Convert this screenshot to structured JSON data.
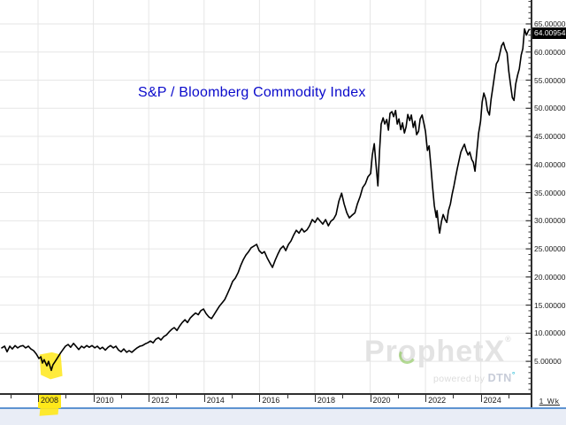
{
  "chart_data": {
    "type": "line",
    "title": "S&P / Bloomberg Commodity Index",
    "periodicity_label": "1 Wk",
    "last_price_label": "64.00954",
    "last_price_value": 64.00954,
    "grid": true,
    "legend": "none",
    "x_axis": {
      "range": [
        2006.625,
        2025.8
      ],
      "tick_years": [
        2008,
        2010,
        2012,
        2014,
        2016,
        2018,
        2020,
        2022,
        2024
      ],
      "tick_labels": [
        "2008",
        "2010",
        "2012",
        "2014",
        "2016",
        "2018",
        "2020",
        "2022",
        "2024"
      ]
    },
    "y_axis": {
      "side": "right",
      "range": [
        -0.65,
        69.25
      ],
      "tick_values": [
        5,
        10,
        15,
        20,
        25,
        30,
        35,
        40,
        45,
        50,
        55,
        60,
        65
      ],
      "tick_labels": [
        "5.00000",
        "10.00000",
        "15.00000",
        "20.00000",
        "25.00000",
        "30.00000",
        "35.00000",
        "40.00000",
        "45.00000",
        "50.00000",
        "55.00000",
        "60.00000",
        "65.00000"
      ],
      "minor_tick_step": 1
    },
    "series": [
      {
        "name": "S&P / Bloomberg Commodity Index",
        "points": [
          [
            2006.69,
            7.4
          ],
          [
            2006.79,
            7.7
          ],
          [
            2006.88,
            6.7
          ],
          [
            2006.98,
            7.7
          ],
          [
            2007.07,
            7.2
          ],
          [
            2007.17,
            7.8
          ],
          [
            2007.26,
            7.4
          ],
          [
            2007.36,
            7.7
          ],
          [
            2007.46,
            7.8
          ],
          [
            2007.55,
            7.4
          ],
          [
            2007.65,
            7.7
          ],
          [
            2007.74,
            7.2
          ],
          [
            2007.84,
            6.9
          ],
          [
            2007.94,
            6.3
          ],
          [
            2008.03,
            5.5
          ],
          [
            2008.1,
            5.8
          ],
          [
            2008.16,
            4.7
          ],
          [
            2008.22,
            5.3
          ],
          [
            2008.32,
            4.2
          ],
          [
            2008.38,
            5.0
          ],
          [
            2008.48,
            3.4
          ],
          [
            2008.54,
            4.4
          ],
          [
            2008.61,
            4.9
          ],
          [
            2008.7,
            5.6
          ],
          [
            2008.8,
            6.4
          ],
          [
            2008.9,
            7.1
          ],
          [
            2008.99,
            7.7
          ],
          [
            2009.09,
            8.0
          ],
          [
            2009.18,
            7.5
          ],
          [
            2009.28,
            8.2
          ],
          [
            2009.37,
            7.7
          ],
          [
            2009.47,
            7.1
          ],
          [
            2009.57,
            7.7
          ],
          [
            2009.66,
            7.4
          ],
          [
            2009.76,
            7.8
          ],
          [
            2009.85,
            7.5
          ],
          [
            2009.95,
            7.8
          ],
          [
            2010.05,
            7.4
          ],
          [
            2010.14,
            7.7
          ],
          [
            2010.24,
            7.2
          ],
          [
            2010.33,
            7.5
          ],
          [
            2010.43,
            7.0
          ],
          [
            2010.53,
            7.5
          ],
          [
            2010.62,
            7.8
          ],
          [
            2010.72,
            7.4
          ],
          [
            2010.81,
            7.7
          ],
          [
            2010.91,
            7.0
          ],
          [
            2011.0,
            6.7
          ],
          [
            2011.1,
            7.2
          ],
          [
            2011.2,
            6.6
          ],
          [
            2011.29,
            6.9
          ],
          [
            2011.39,
            6.6
          ],
          [
            2011.48,
            7.0
          ],
          [
            2011.58,
            7.4
          ],
          [
            2011.68,
            7.7
          ],
          [
            2011.77,
            7.8
          ],
          [
            2011.87,
            8.1
          ],
          [
            2011.96,
            8.3
          ],
          [
            2012.06,
            8.6
          ],
          [
            2012.16,
            8.3
          ],
          [
            2012.25,
            8.9
          ],
          [
            2012.35,
            9.2
          ],
          [
            2012.44,
            8.8
          ],
          [
            2012.54,
            9.4
          ],
          [
            2012.64,
            9.7
          ],
          [
            2012.73,
            10.2
          ],
          [
            2012.83,
            10.7
          ],
          [
            2012.92,
            11.0
          ],
          [
            2013.02,
            10.5
          ],
          [
            2013.12,
            11.3
          ],
          [
            2013.21,
            11.9
          ],
          [
            2013.31,
            12.4
          ],
          [
            2013.4,
            11.9
          ],
          [
            2013.5,
            12.7
          ],
          [
            2013.6,
            13.2
          ],
          [
            2013.69,
            13.6
          ],
          [
            2013.79,
            13.3
          ],
          [
            2013.88,
            14.0
          ],
          [
            2013.98,
            14.3
          ],
          [
            2014.07,
            13.5
          ],
          [
            2014.17,
            12.9
          ],
          [
            2014.27,
            12.6
          ],
          [
            2014.36,
            13.3
          ],
          [
            2014.46,
            14.1
          ],
          [
            2014.55,
            14.8
          ],
          [
            2014.65,
            15.4
          ],
          [
            2014.75,
            16.0
          ],
          [
            2014.84,
            17.0
          ],
          [
            2014.94,
            18.1
          ],
          [
            2015.03,
            19.2
          ],
          [
            2015.13,
            19.8
          ],
          [
            2015.23,
            20.8
          ],
          [
            2015.32,
            22.0
          ],
          [
            2015.42,
            23.1
          ],
          [
            2015.51,
            23.9
          ],
          [
            2015.61,
            24.5
          ],
          [
            2015.7,
            25.2
          ],
          [
            2015.8,
            25.5
          ],
          [
            2015.9,
            25.8
          ],
          [
            2015.99,
            24.7
          ],
          [
            2016.09,
            24.2
          ],
          [
            2016.18,
            24.5
          ],
          [
            2016.28,
            23.4
          ],
          [
            2016.38,
            22.5
          ],
          [
            2016.47,
            21.7
          ],
          [
            2016.57,
            23.0
          ],
          [
            2016.66,
            24.0
          ],
          [
            2016.76,
            25.0
          ],
          [
            2016.86,
            25.5
          ],
          [
            2016.95,
            24.7
          ],
          [
            2017.05,
            25.8
          ],
          [
            2017.14,
            26.4
          ],
          [
            2017.24,
            27.5
          ],
          [
            2017.33,
            28.3
          ],
          [
            2017.43,
            27.8
          ],
          [
            2017.53,
            28.6
          ],
          [
            2017.62,
            28.0
          ],
          [
            2017.72,
            28.4
          ],
          [
            2017.81,
            29.1
          ],
          [
            2017.91,
            30.2
          ],
          [
            2018.01,
            29.7
          ],
          [
            2018.1,
            30.5
          ],
          [
            2018.2,
            29.9
          ],
          [
            2018.29,
            29.4
          ],
          [
            2018.39,
            30.2
          ],
          [
            2018.49,
            29.1
          ],
          [
            2018.58,
            29.9
          ],
          [
            2018.68,
            30.3
          ],
          [
            2018.77,
            31.1
          ],
          [
            2018.87,
            33.5
          ],
          [
            2018.97,
            34.9
          ],
          [
            2019.06,
            33.0
          ],
          [
            2019.16,
            31.4
          ],
          [
            2019.25,
            30.5
          ],
          [
            2019.35,
            31.0
          ],
          [
            2019.45,
            31.4
          ],
          [
            2019.54,
            33.0
          ],
          [
            2019.64,
            34.3
          ],
          [
            2019.73,
            35.9
          ],
          [
            2019.83,
            36.6
          ],
          [
            2019.92,
            37.8
          ],
          [
            2020.02,
            38.4
          ],
          [
            2020.08,
            41.7
          ],
          [
            2020.15,
            43.7
          ],
          [
            2020.21,
            40.1
          ],
          [
            2020.28,
            36.2
          ],
          [
            2020.34,
            42.5
          ],
          [
            2020.4,
            47.2
          ],
          [
            2020.47,
            48.3
          ],
          [
            2020.53,
            47.2
          ],
          [
            2020.6,
            48.0
          ],
          [
            2020.66,
            46.1
          ],
          [
            2020.72,
            49.1
          ],
          [
            2020.79,
            49.4
          ],
          [
            2020.85,
            48.5
          ],
          [
            2020.92,
            49.6
          ],
          [
            2020.98,
            47.2
          ],
          [
            2021.04,
            48.1
          ],
          [
            2021.11,
            46.2
          ],
          [
            2021.17,
            47.4
          ],
          [
            2021.24,
            45.6
          ],
          [
            2021.3,
            46.7
          ],
          [
            2021.36,
            48.9
          ],
          [
            2021.43,
            47.8
          ],
          [
            2021.49,
            48.8
          ],
          [
            2021.56,
            46.6
          ],
          [
            2021.62,
            47.7
          ],
          [
            2021.68,
            45.3
          ],
          [
            2021.75,
            45.9
          ],
          [
            2021.81,
            48.1
          ],
          [
            2021.88,
            48.8
          ],
          [
            2021.94,
            47.4
          ],
          [
            2022.0,
            45.9
          ],
          [
            2022.07,
            42.5
          ],
          [
            2022.13,
            43.3
          ],
          [
            2022.19,
            40.1
          ],
          [
            2022.26,
            35.9
          ],
          [
            2022.32,
            32.7
          ],
          [
            2022.39,
            30.6
          ],
          [
            2022.42,
            31.8
          ],
          [
            2022.48,
            28.8
          ],
          [
            2022.51,
            27.8
          ],
          [
            2022.58,
            29.9
          ],
          [
            2022.64,
            31.1
          ],
          [
            2022.71,
            30.2
          ],
          [
            2022.77,
            29.7
          ],
          [
            2022.83,
            31.8
          ],
          [
            2022.9,
            33.0
          ],
          [
            2022.96,
            34.6
          ],
          [
            2023.03,
            36.2
          ],
          [
            2023.09,
            37.8
          ],
          [
            2023.15,
            39.3
          ],
          [
            2023.22,
            40.9
          ],
          [
            2023.28,
            42.2
          ],
          [
            2023.35,
            43.0
          ],
          [
            2023.41,
            43.6
          ],
          [
            2023.47,
            42.5
          ],
          [
            2023.54,
            41.7
          ],
          [
            2023.6,
            42.2
          ],
          [
            2023.67,
            40.9
          ],
          [
            2023.73,
            40.4
          ],
          [
            2023.79,
            38.8
          ],
          [
            2023.86,
            42.5
          ],
          [
            2023.92,
            45.6
          ],
          [
            2023.99,
            47.7
          ],
          [
            2024.05,
            51.1
          ],
          [
            2024.11,
            52.7
          ],
          [
            2024.18,
            51.6
          ],
          [
            2024.24,
            49.6
          ],
          [
            2024.31,
            48.8
          ],
          [
            2024.37,
            51.6
          ],
          [
            2024.43,
            53.5
          ],
          [
            2024.5,
            55.9
          ],
          [
            2024.56,
            57.9
          ],
          [
            2024.63,
            58.5
          ],
          [
            2024.69,
            59.8
          ],
          [
            2024.75,
            61.1
          ],
          [
            2024.82,
            61.7
          ],
          [
            2024.88,
            60.6
          ],
          [
            2024.95,
            59.8
          ],
          [
            2025.01,
            56.6
          ],
          [
            2025.07,
            54.3
          ],
          [
            2025.14,
            51.9
          ],
          [
            2025.2,
            51.4
          ],
          [
            2025.26,
            54.3
          ],
          [
            2025.33,
            55.9
          ],
          [
            2025.39,
            57.0
          ],
          [
            2025.46,
            59.5
          ],
          [
            2025.52,
            60.6
          ],
          [
            2025.58,
            64.1
          ],
          [
            2025.65,
            63.0
          ],
          [
            2025.71,
            63.7
          ],
          [
            2025.75,
            64.0
          ]
        ]
      }
    ],
    "annotations": [
      {
        "kind": "highlight-polygon",
        "color": "#ffe81a",
        "opacity": 0.85,
        "points": [
          [
            2008.05,
            6.2
          ],
          [
            2008.5,
            6.6
          ],
          [
            2008.82,
            6.2
          ],
          [
            2008.88,
            2.4
          ],
          [
            2008.45,
            1.8
          ],
          [
            2008.1,
            2.6
          ]
        ]
      },
      {
        "kind": "highlight-x-label",
        "year": 2008,
        "color": "#ffe81a"
      }
    ]
  },
  "watermark": {
    "brand_pre": "Pr",
    "brand_o": "o",
    "brand_post": "phetX",
    "reg_mark": "®",
    "tagline": "powered by",
    "vendor": "DTN",
    "degree_mark": "°"
  },
  "colors": {
    "title": "#0a0acb",
    "line": "#000000",
    "grid": "#e6e6e6",
    "axis": "#2f2f2f",
    "highlight": "#ffe81a",
    "price_box_bg": "#000000",
    "price_box_fg": "#ffffff",
    "divider_blue": "#5e93d1",
    "scrollbar_bg": "#e9edf6",
    "watermark_gray": "#e3e3e3",
    "watermark_green": "#7cc143",
    "watermark_cyan": "#49c6dd"
  }
}
